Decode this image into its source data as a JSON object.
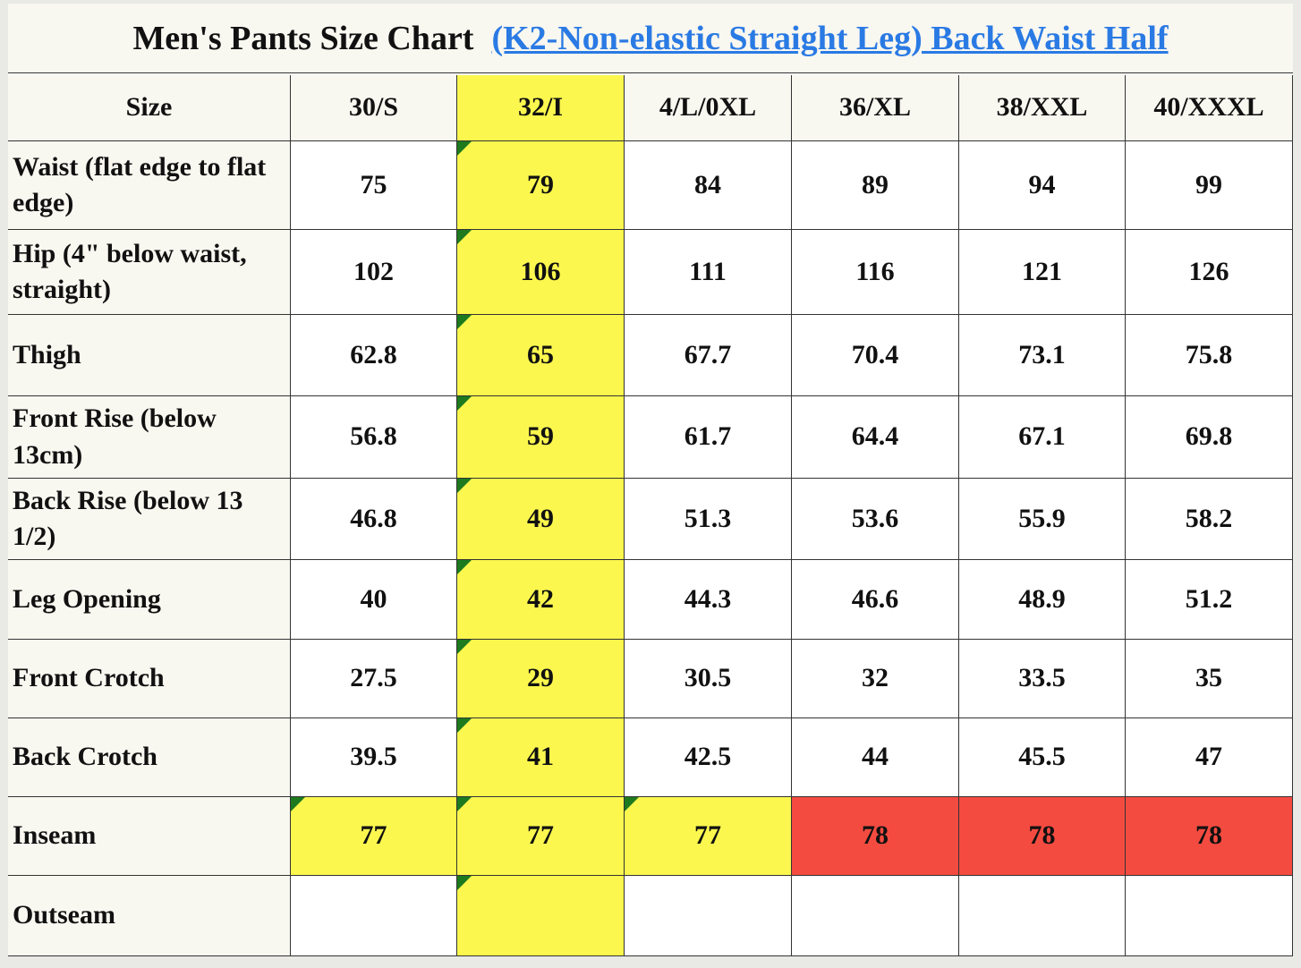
{
  "header": {
    "title": "Men's Pants Size Chart",
    "link": "(K2-Non-elastic Straight Leg) Back Waist Half"
  },
  "table": {
    "columns": [
      "Size",
      "30/S",
      "32/I",
      "4/L/0XL",
      "36/XL",
      "38/XXL",
      "40/XXXL"
    ],
    "rows": [
      {
        "label": "Waist (flat edge to flat edge)",
        "values": [
          75,
          79,
          84,
          89,
          94,
          99
        ]
      },
      {
        "label": "Hip (4\" below waist, straight)",
        "values": [
          102,
          106,
          111,
          116,
          121,
          126
        ]
      },
      {
        "label": "Thigh",
        "values": [
          62.8,
          65,
          67.7,
          70.4,
          73.1,
          75.8
        ]
      },
      {
        "label": "Front Rise (below 13cm)",
        "values": [
          56.8,
          59,
          61.7,
          64.4,
          67.1,
          69.8
        ]
      },
      {
        "label": "Back Rise (below 13 1/2)",
        "values": [
          46.8,
          49,
          51.3,
          53.6,
          55.9,
          58.2
        ]
      },
      {
        "label": "Leg Opening",
        "values": [
          40,
          42,
          44.3,
          46.6,
          48.9,
          51.2
        ]
      },
      {
        "label": "Front Crotch",
        "values": [
          27.5,
          29,
          30.5,
          32,
          33.5,
          35
        ]
      },
      {
        "label": "Back Crotch",
        "values": [
          39.5,
          41,
          42.5,
          44,
          45.5,
          47
        ]
      },
      {
        "label": "Inseam",
        "values": [
          77,
          77,
          77,
          78,
          78,
          78
        ]
      },
      {
        "label": "Outseam",
        "values": []
      }
    ]
  }
}
